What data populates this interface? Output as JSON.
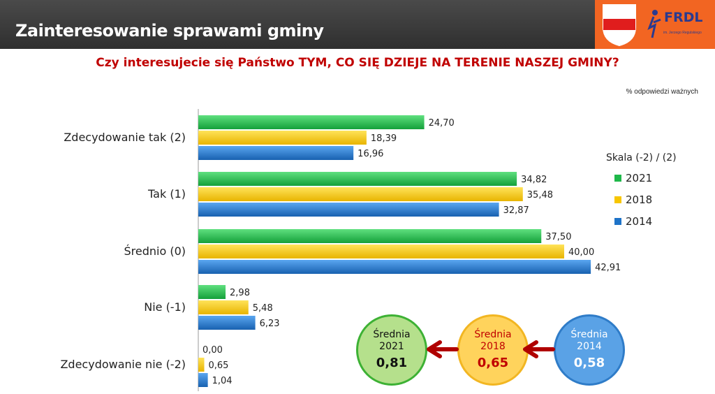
{
  "header": {
    "title": "Zainteresowanie sprawami gminy",
    "logo_text": "FRDL",
    "logo_subtext": "im. Jerzego Regulskiego"
  },
  "question": "Czy interesujecie się Państwo TYM, CO SIĘ DZIEJE NA TERENIE NASZEJ GMINY?",
  "note": "% odpowiedzi ważnych",
  "legend": {
    "title": "Skala (-2) / (2)"
  },
  "chart_data": {
    "type": "bar",
    "orientation": "horizontal",
    "categories": [
      "Zdecydowanie tak (2)",
      "Tak (1)",
      "Średnio (0)",
      "Nie (-1)",
      "Zdecydowanie nie (-2)"
    ],
    "series": [
      {
        "name": "2021",
        "color": "#1fb84a",
        "values": [
          24.7,
          34.82,
          37.5,
          2.98,
          0.0
        ],
        "labels": [
          "24,70",
          "34,82",
          "37,50",
          "2,98",
          "0,00"
        ]
      },
      {
        "name": "2018",
        "color": "#f7c600",
        "values": [
          18.39,
          35.48,
          40.0,
          5.48,
          0.65
        ],
        "labels": [
          "18,39",
          "35,48",
          "40,00",
          "5,48",
          "0,65"
        ]
      },
      {
        "name": "2014",
        "color": "#1e73c8",
        "values": [
          16.96,
          32.87,
          42.91,
          6.23,
          1.04
        ],
        "labels": [
          "16,96",
          "32,87",
          "42,91",
          "6,23",
          "1,04"
        ]
      }
    ],
    "xlim": [
      0,
      45
    ],
    "grid": false,
    "legend_position": "right"
  },
  "averages": [
    {
      "label": "Średnia",
      "year": "2021",
      "value": "0,81",
      "bg": "#b5e08c",
      "border": "#3db134",
      "text": "#111111"
    },
    {
      "label": "Średnia",
      "year": "2018",
      "value": "0,65",
      "bg": "#ffd35c",
      "border": "#f2b622",
      "text": "#c00000"
    },
    {
      "label": "Średnia",
      "year": "2014",
      "value": "0,58",
      "bg": "#5aa2e6",
      "border": "#2f7cc8",
      "text": "#ffffff"
    }
  ]
}
